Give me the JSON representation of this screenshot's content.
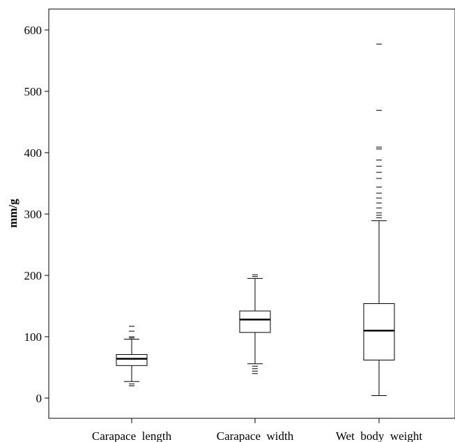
{
  "chart_data": {
    "type": "boxplot",
    "ylabel": "mm/g",
    "xlabel": "",
    "ylim": [
      -33,
      668
    ],
    "yticks": [
      0,
      100,
      200,
      300,
      400,
      500,
      600
    ],
    "grid": false,
    "legend": "none",
    "categories": [
      "Carapace  length",
      "Carapace  width",
      "Wet  body  weight"
    ],
    "boxes": [
      {
        "category": "Carapace  length",
        "whisker_low": 27,
        "q1": 53,
        "median": 64,
        "q3": 71,
        "whisker_high": 96,
        "outliers": [
          20,
          23,
          98,
          100,
          109,
          117
        ]
      },
      {
        "category": "Carapace  width",
        "whisker_low": 56,
        "q1": 107,
        "median": 128,
        "q3": 142,
        "whisker_high": 195,
        "outliers": [
          40,
          44,
          48,
          52,
          198,
          201
        ]
      },
      {
        "category": "Wet  body  weight",
        "whisker_low": 4,
        "q1": 62,
        "median": 110,
        "q3": 154,
        "whisker_high": 289,
        "outliers": [
          294,
          298,
          302,
          310,
          318,
          326,
          334,
          344,
          358,
          368,
          378,
          388,
          406,
          409,
          469,
          577
        ]
      }
    ]
  }
}
